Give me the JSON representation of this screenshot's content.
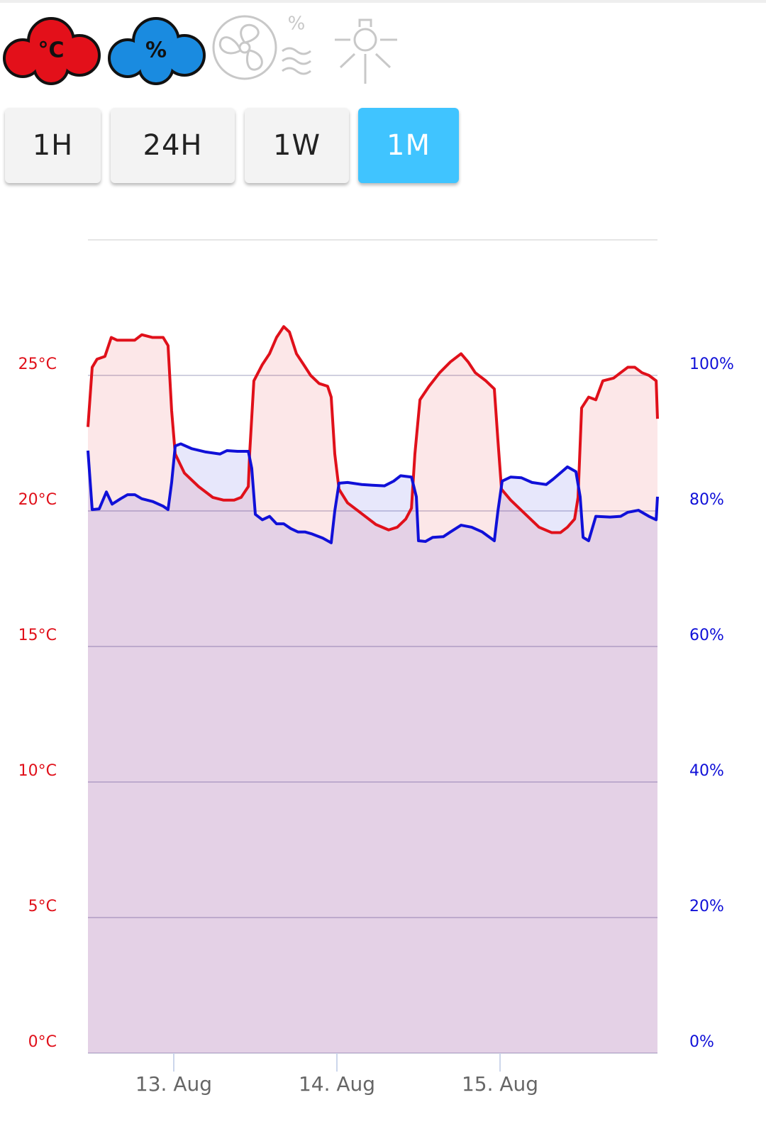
{
  "toolbar": {
    "icons": [
      {
        "label": "°C"
      },
      {
        "label": "%"
      },
      {
        "label": "%"
      }
    ]
  },
  "range_buttons": [
    {
      "label": "1H",
      "selected": false
    },
    {
      "label": "24H",
      "selected": false
    },
    {
      "label": "1W",
      "selected": false
    },
    {
      "label": "1M",
      "selected": true
    }
  ],
  "chart_data": {
    "type": "area",
    "xlim": [
      12.474,
      15.965
    ],
    "xticks": [
      {
        "value": 13,
        "label": "13. Aug"
      },
      {
        "value": 14,
        "label": "14. Aug"
      },
      {
        "value": 15,
        "label": "15. Aug"
      }
    ],
    "ylim": [
      0,
      30
    ],
    "yticks": [
      {
        "value": 0,
        "label": "0°C"
      },
      {
        "value": 5,
        "label": "5°C"
      },
      {
        "value": 10,
        "label": "10°C"
      },
      {
        "value": 15,
        "label": "15°C"
      },
      {
        "value": 20,
        "label": "20°C"
      },
      {
        "value": 25,
        "label": "25°C"
      }
    ],
    "y2lim": [
      0,
      120
    ],
    "y2ticks": [
      {
        "value": 0,
        "label": "0%"
      },
      {
        "value": 20,
        "label": "20%"
      },
      {
        "value": 40,
        "label": "40%"
      },
      {
        "value": 60,
        "label": "60%"
      },
      {
        "value": 80,
        "label": "80%"
      },
      {
        "value": 100,
        "label": "100%"
      }
    ],
    "grid": true,
    "series": [
      {
        "color": "#e0101a",
        "axis": "y",
        "x": [
          12.474,
          12.5,
          12.53,
          12.578,
          12.617,
          12.652,
          12.717,
          12.761,
          12.804,
          12.87,
          12.935,
          12.965,
          12.987,
          13.009,
          13.065,
          13.152,
          13.239,
          13.304,
          13.37,
          13.413,
          13.457,
          13.465,
          13.491,
          13.543,
          13.587,
          13.63,
          13.674,
          13.709,
          13.752,
          13.796,
          13.839,
          13.891,
          13.943,
          13.965,
          13.987,
          14.013,
          14.065,
          14.152,
          14.239,
          14.317,
          14.37,
          14.422,
          14.457,
          14.478,
          14.509,
          14.565,
          14.63,
          14.696,
          14.761,
          14.804,
          14.848,
          14.913,
          14.965,
          14.987,
          15.009,
          15.065,
          15.152,
          15.239,
          15.317,
          15.37,
          15.413,
          15.457,
          15.478,
          15.5,
          15.543,
          15.587,
          15.63,
          15.696,
          15.739,
          15.783,
          15.826,
          15.87,
          15.913,
          15.957,
          15.965
        ],
        "values": [
          23.1,
          25.3,
          25.6,
          25.7,
          26.4,
          26.3,
          26.3,
          26.3,
          26.5,
          26.4,
          26.4,
          26.1,
          23.7,
          22.1,
          21.4,
          20.9,
          20.5,
          20.4,
          20.4,
          20.5,
          20.9,
          22.1,
          24.8,
          25.4,
          25.8,
          26.4,
          26.8,
          26.6,
          25.8,
          25.4,
          25.0,
          24.7,
          24.6,
          24.2,
          22.1,
          20.8,
          20.3,
          19.9,
          19.5,
          19.3,
          19.4,
          19.7,
          20.1,
          22.1,
          24.1,
          24.6,
          25.1,
          25.5,
          25.8,
          25.5,
          25.1,
          24.8,
          24.5,
          22.6,
          20.8,
          20.4,
          19.9,
          19.4,
          19.2,
          19.2,
          19.4,
          19.7,
          20.5,
          23.8,
          24.2,
          24.1,
          24.8,
          24.9,
          25.1,
          25.3,
          25.3,
          25.1,
          25.0,
          24.8,
          23.4
        ]
      },
      {
        "color": "#1010d8",
        "axis": "y2",
        "x": [
          12.474,
          12.5,
          12.543,
          12.587,
          12.622,
          12.674,
          12.717,
          12.761,
          12.804,
          12.87,
          12.935,
          12.965,
          12.987,
          13.009,
          13.043,
          13.109,
          13.196,
          13.283,
          13.326,
          13.391,
          13.457,
          13.478,
          13.5,
          13.543,
          13.587,
          13.63,
          13.674,
          13.717,
          13.761,
          13.804,
          13.848,
          13.913,
          13.965,
          13.987,
          14.013,
          14.065,
          14.152,
          14.217,
          14.291,
          14.348,
          14.391,
          14.457,
          14.487,
          14.5,
          14.543,
          14.587,
          14.652,
          14.696,
          14.761,
          14.826,
          14.891,
          14.965,
          14.987,
          15.013,
          15.065,
          15.13,
          15.196,
          15.283,
          15.326,
          15.413,
          15.465,
          15.491,
          15.509,
          15.543,
          15.587,
          15.674,
          15.739,
          15.783,
          15.848,
          15.913,
          15.957,
          15.965
        ],
        "values": [
          88.9,
          80.2,
          80.3,
          82.8,
          81.0,
          81.8,
          82.4,
          82.4,
          81.8,
          81.4,
          80.7,
          80.2,
          84.2,
          89.6,
          89.9,
          89.2,
          88.7,
          88.4,
          88.9,
          88.8,
          88.8,
          86.3,
          79.5,
          78.7,
          79.2,
          78.1,
          78.1,
          77.4,
          76.9,
          76.9,
          76.6,
          76.0,
          75.3,
          80.0,
          84.1,
          84.2,
          83.9,
          83.8,
          83.7,
          84.4,
          85.2,
          85.0,
          82.1,
          75.6,
          75.5,
          76.1,
          76.2,
          76.9,
          77.9,
          77.6,
          76.9,
          75.6,
          80.0,
          84.4,
          85.0,
          84.9,
          84.2,
          83.9,
          84.7,
          86.5,
          85.8,
          82.1,
          76.1,
          75.6,
          79.2,
          79.1,
          79.2,
          79.8,
          80.1,
          79.2,
          78.7,
          82.1
        ]
      }
    ]
  }
}
